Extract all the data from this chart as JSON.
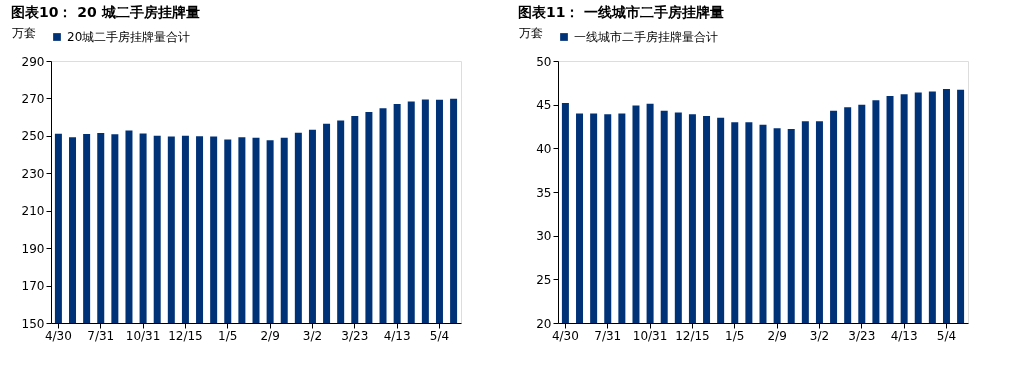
{
  "chart_data": [
    {
      "type": "bar",
      "title": "图表10：  20 城二手房挂牌量",
      "ylabel": "万套",
      "categories": [
        "4/30",
        null,
        null,
        "7/31",
        null,
        null,
        "10/31",
        null,
        null,
        "12/15",
        null,
        null,
        "1/5",
        null,
        null,
        "2/9",
        null,
        null,
        "3/2",
        null,
        null,
        "3/23",
        null,
        null,
        "4/13",
        null,
        null,
        "5/4",
        null
      ],
      "series": [
        {
          "name": "20城二手房挂牌量合计",
          "color": "#003278",
          "values": [
            251.1,
            249.3,
            251,
            251.5,
            250.8,
            252.8,
            251.2,
            250,
            249.6,
            250,
            249.8,
            249.7,
            248,
            249.3,
            249,
            247.7,
            249,
            251.6,
            253.3,
            256.5,
            258.2,
            260.6,
            262.8,
            264.8,
            267,
            268.3,
            269.4,
            269.3,
            269.8
          ]
        }
      ],
      "ylim": [
        150,
        290
      ],
      "yticks": [
        150,
        170,
        190,
        210,
        230,
        250,
        270,
        290
      ],
      "grid": false,
      "legend": "top"
    },
    {
      "type": "bar",
      "title": "图表11：  一线城市二手房挂牌量",
      "ylabel": "万套",
      "categories": [
        "4/30",
        null,
        null,
        "7/31",
        null,
        null,
        "10/31",
        null,
        null,
        "12/15",
        null,
        null,
        "1/5",
        null,
        null,
        "2/9",
        null,
        null,
        "3/2",
        null,
        null,
        "3/23",
        null,
        null,
        "4/13",
        null,
        null,
        "5/4",
        null
      ],
      "series": [
        {
          "name": "一线城市二手房挂牌量合计",
          "color": "#003278",
          "values": [
            45.2,
            44.0,
            44.0,
            43.9,
            44.0,
            44.9,
            45.1,
            44.3,
            44.1,
            43.9,
            43.7,
            43.5,
            43.0,
            43.0,
            42.7,
            42.3,
            42.2,
            43.1,
            43.1,
            44.3,
            44.7,
            45.0,
            45.5,
            46.0,
            46.2,
            46.4,
            46.5,
            46.8,
            46.7
          ]
        }
      ],
      "ylim": [
        20,
        50
      ],
      "yticks": [
        20,
        25,
        30,
        35,
        40,
        45,
        50
      ],
      "grid": false,
      "legend": "top"
    }
  ]
}
